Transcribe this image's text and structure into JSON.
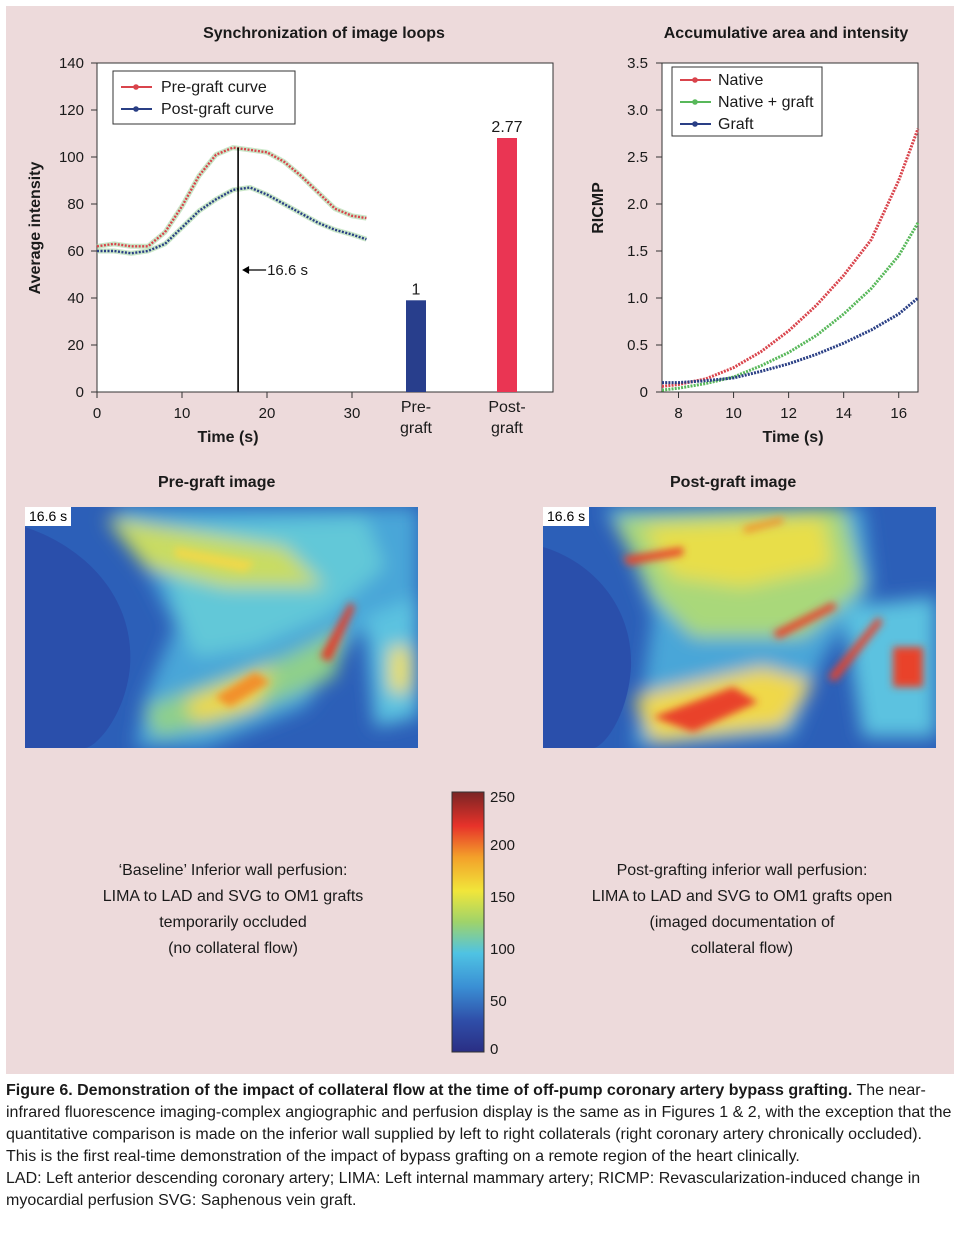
{
  "chart_data": [
    {
      "type": "line",
      "title": "Synchronization of image loops",
      "xlabel": "Time (s)",
      "ylabel": "Average intensity",
      "xlim": [
        0,
        32
      ],
      "ylim": [
        0,
        140
      ],
      "xticks": [
        0,
        10,
        20,
        30
      ],
      "yticks": [
        0,
        20,
        40,
        60,
        80,
        100,
        120,
        140
      ],
      "legend": "top-left",
      "series": [
        {
          "name": "Pre-graft curve",
          "color": "#d9444c",
          "x": [
            0,
            2,
            4,
            6,
            8,
            10,
            12,
            14,
            16,
            18,
            20,
            22,
            24,
            26,
            28,
            30,
            32
          ],
          "y": [
            62,
            63,
            62,
            62,
            68,
            79,
            92,
            101,
            104,
            103,
            102,
            98,
            92,
            85,
            78,
            75,
            74
          ]
        },
        {
          "name": "Post-graft curve",
          "color": "#2a3f85",
          "x": [
            0,
            2,
            4,
            6,
            8,
            10,
            12,
            14,
            16,
            18,
            20,
            22,
            24,
            26,
            28,
            30,
            32
          ],
          "y": [
            60,
            60,
            59,
            60,
            63,
            70,
            77,
            82,
            86,
            87,
            84,
            80,
            76,
            72,
            69,
            67,
            65
          ]
        }
      ],
      "marker": {
        "x": 16.6,
        "label": "16.6 s"
      }
    },
    {
      "type": "bar",
      "categories": [
        "Pre-\ngraft",
        "Post-\ngraft"
      ],
      "values": [
        1,
        2.77
      ],
      "data_labels": [
        "1",
        "2.77"
      ],
      "colors": [
        "#283e8c",
        "#ea3553"
      ]
    },
    {
      "type": "line",
      "title": "Accumulative area and intensity",
      "xlabel": "Time (s)",
      "ylabel": "RICMP",
      "xlim": [
        7.4,
        16.7
      ],
      "ylim": [
        0,
        3.5
      ],
      "xticks": [
        8,
        10,
        12,
        14,
        16
      ],
      "yticks": [
        0,
        0.5,
        1.0,
        1.5,
        2.0,
        2.5,
        3.0,
        3.5
      ],
      "ytick_labels": [
        "0",
        "0.5",
        "1.0",
        "1.5",
        "2.0",
        "2.5",
        "3.0",
        "3.5"
      ],
      "legend": "top-left",
      "series": [
        {
          "name": "Native",
          "color": "#d9444c",
          "x": [
            7.4,
            8,
            9,
            10,
            11,
            12,
            13,
            14,
            15,
            16,
            16.7
          ],
          "y": [
            0.06,
            0.08,
            0.14,
            0.26,
            0.43,
            0.65,
            0.92,
            1.24,
            1.62,
            2.25,
            2.8
          ]
        },
        {
          "name": "Native + graft",
          "color": "#58b85a",
          "x": [
            7.4,
            8,
            9,
            10,
            11,
            12,
            13,
            14,
            15,
            16,
            16.7
          ],
          "y": [
            0.02,
            0.04,
            0.09,
            0.16,
            0.28,
            0.42,
            0.6,
            0.83,
            1.1,
            1.45,
            1.8
          ]
        },
        {
          "name": "Graft",
          "color": "#2a3f85",
          "x": [
            7.4,
            8,
            9,
            10,
            11,
            12,
            13,
            14,
            15,
            16,
            16.7
          ],
          "y": [
            0.1,
            0.1,
            0.12,
            0.15,
            0.22,
            0.3,
            0.4,
            0.52,
            0.66,
            0.83,
            1.0
          ]
        }
      ]
    },
    {
      "type": "heatmap",
      "colorbar_ticks": [
        0,
        50,
        100,
        150,
        200,
        250
      ],
      "vmin": 0,
      "vmax": 250
    }
  ],
  "images": {
    "pre": {
      "title": "Pre-graft image",
      "timestamp": "16.6 s"
    },
    "post": {
      "title": "Post-graft image",
      "timestamp": "16.6 s"
    }
  },
  "captions": {
    "left": [
      "‘Baseline’ Inferior wall perfusion:",
      "LIMA to LAD and SVG to OM1 grafts",
      "temporarily occluded",
      "(no collateral flow)"
    ],
    "right": [
      "Post-grafting inferior wall perfusion:",
      "LIMA to LAD and SVG to OM1 grafts open",
      "(imaged documentation of",
      "collateral flow)"
    ]
  },
  "figure_caption": {
    "title": "Figure 6. Demonstration of the impact of collateral flow at the time of off-pump coronary artery bypass grafting.",
    "body": "The near-infrared fluorescence imaging-complex angiographic and perfusion display is the same as in Figures 1 & 2, with the exception that the quantitative comparison is made on the inferior wall supplied by left to right collaterals (right coronary artery chronically occluded). This is the first real-time demonstration of the impact of bypass grafting on a remote region of the heart clinically.",
    "abbreviations": "LAD: Left anterior descending coronary artery; LIMA: Left internal mammary artery; RICMP: Revascularization-induced change in myocardial perfusion SVG: Saphenous vein graft."
  }
}
